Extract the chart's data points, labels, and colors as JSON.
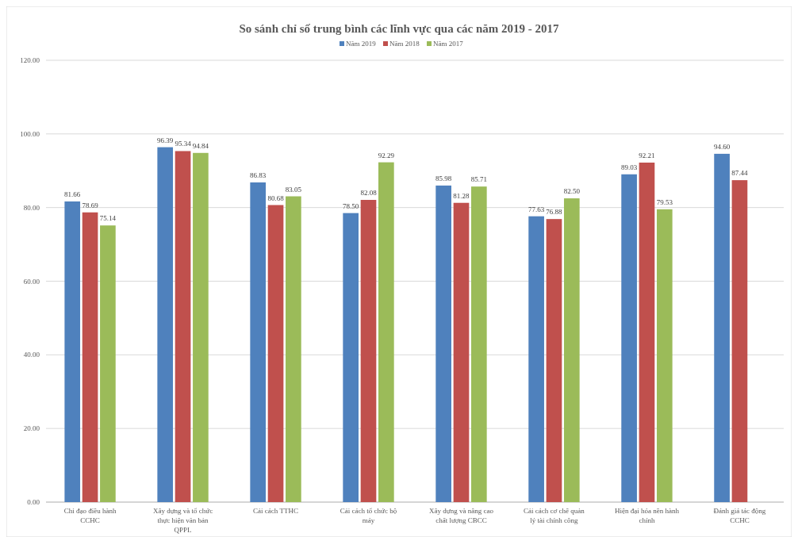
{
  "chart_data": {
    "type": "bar",
    "title": "So sánh chỉ số trung bình  các lĩnh vực qua các năm 2019 - 2017",
    "categories": [
      "Chỉ đạo điều hành CCHC",
      "Xây dựng và tổ chức thực hiện văn bản QPPL",
      "Cải cách TTHC",
      "Cải cách tổ chức bộ máy",
      "Xây dựng và nâng cao chất lượng CBCC",
      "Cải cách cơ chế quản lý tài chính công",
      "Hiện đại hóa nền hành chính",
      "Đánh giá tác động CCHC"
    ],
    "series": [
      {
        "name": "Năm 2019",
        "color": "#4f81bd",
        "values": [
          81.66,
          96.39,
          86.83,
          78.5,
          85.98,
          77.63,
          89.03,
          94.6
        ],
        "value_labels": [
          "81.66",
          "96.39",
          "86.83",
          "78.50",
          "85.98",
          "77.63",
          "89.03",
          "94.60"
        ]
      },
      {
        "name": "Năm 2018",
        "color": "#c0504d",
        "values": [
          78.69,
          95.34,
          80.68,
          82.08,
          81.28,
          76.88,
          92.21,
          87.44
        ],
        "value_labels": [
          "78.69",
          "95.34",
          "80.68",
          "82.08",
          "81.28",
          "76.88",
          "92.21",
          "87.44"
        ]
      },
      {
        "name": "Năm 2017",
        "color": "#9bbb59",
        "values": [
          75.14,
          94.84,
          83.05,
          92.29,
          85.71,
          82.5,
          79.53,
          null
        ],
        "value_labels": [
          "75.14",
          "94.84",
          "83.05",
          "92.29",
          "85.71",
          "82.50",
          "79.53",
          null
        ]
      }
    ],
    "ylim": [
      0,
      120
    ],
    "yticks": [
      {
        "value": 0,
        "label": "0.00"
      },
      {
        "value": 20,
        "label": "20.00"
      },
      {
        "value": 40,
        "label": "40.00"
      },
      {
        "value": 60,
        "label": "60.00"
      },
      {
        "value": 80,
        "label": "80.00"
      },
      {
        "value": 100,
        "label": "100.00"
      },
      {
        "value": 120,
        "label": "120.00"
      }
    ],
    "grid": "y",
    "legend": "top"
  }
}
